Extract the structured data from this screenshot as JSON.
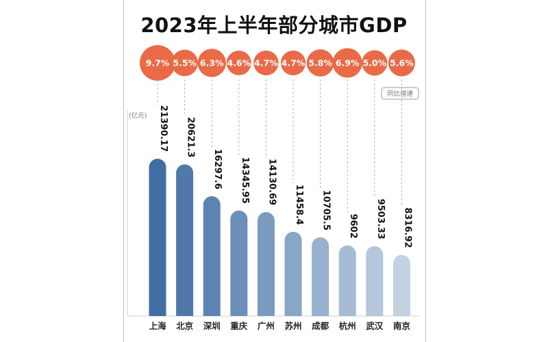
{
  "title": "2023年上半年部分城市GDP",
  "unit_label": "(亿元)",
  "growth_legend": "同比增速",
  "colors": {
    "bubble": "#EA6A47",
    "bar_dark": "#3F6EA3",
    "bar_light": "#C3D2E3"
  },
  "chart_data": {
    "type": "bar",
    "title": "2023年上半年部分城市GDP",
    "ylabel": "(亿元)",
    "xlabel": "",
    "categories": [
      "上海",
      "北京",
      "深圳",
      "重庆",
      "广州",
      "苏州",
      "成都",
      "杭州",
      "武汉",
      "南京"
    ],
    "values": [
      21390.17,
      20621.3,
      16297.6,
      14345.95,
      14130.69,
      11458.4,
      10705.5,
      9602,
      9503.33,
      8316.92
    ],
    "value_labels": [
      "21390.17",
      "20621.3",
      "16297.6",
      "14345.95",
      "14130.69",
      "11458.4",
      "10705.5",
      "9602",
      "9503.33",
      "8316.92"
    ],
    "growth_rates": [
      9.7,
      5.5,
      6.3,
      4.6,
      4.7,
      4.7,
      5.8,
      6.9,
      5.0,
      5.6
    ],
    "growth_labels": [
      "9.7%",
      "5.5%",
      "6.3%",
      "4.6%",
      "4.7%",
      "4.7%",
      "5.8%",
      "6.9%",
      "5.0%",
      "5.6%"
    ],
    "ylim": [
      0,
      32000
    ],
    "grid": false
  }
}
